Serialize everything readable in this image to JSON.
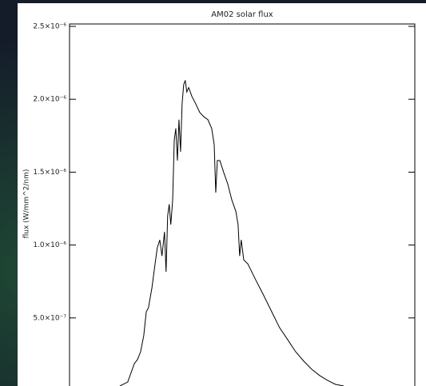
{
  "chart_data": {
    "type": "line",
    "title": "AM02 solar flux",
    "y_label": "flux (W/mm^2/nm)",
    "xlim": [
      102,
      1200
    ],
    "ylim": [
      3.3e-08,
      2.5e-06
    ],
    "yticks": [
      {
        "value": 2.5e-06,
        "label": "2.5×10⁻⁶"
      },
      {
        "value": 2e-06,
        "label": "2.0×10⁻⁶"
      },
      {
        "value": 1.5e-06,
        "label": "1.5×10⁻⁶"
      },
      {
        "value": 1e-06,
        "label": "1.0×10⁻⁶"
      },
      {
        "value": 5e-07,
        "label": "5.0×10⁻⁷"
      }
    ],
    "color": "#000000",
    "x": [
      262,
      287,
      308,
      318,
      328,
      338,
      346,
      353,
      364,
      374,
      381,
      389,
      396,
      404,
      409,
      414,
      419,
      424,
      430,
      435,
      440,
      445,
      450,
      455,
      460,
      465,
      470,
      475,
      481,
      491,
      503,
      516,
      529,
      542,
      554,
      562,
      567,
      572,
      580,
      592,
      605,
      618,
      631,
      638,
      643,
      648,
      656,
      669,
      694,
      720,
      745,
      770,
      796,
      821,
      847,
      872,
      898,
      923,
      948,
      974
    ],
    "values": [
      3.3e-08,
      6e-08,
      1.86e-07,
      2.14e-07,
      2.68e-07,
      3.78e-07,
      5.42e-07,
      5.7e-07,
      7.06e-07,
      8.71e-07,
      9.8e-07,
      1.035e-06,
      9.25e-07,
      1.09e-06,
      8.16e-07,
      1.2e-06,
      1.28e-06,
      1.14e-06,
      1.31e-06,
      1.72e-06,
      1.8e-06,
      1.58e-06,
      1.86e-06,
      1.64e-06,
      1.97e-06,
      2.1e-06,
      2.13e-06,
      2.05e-06,
      2.08e-06,
      2.02e-06,
      1.97e-06,
      1.91e-06,
      1.88e-06,
      1.86e-06,
      1.8e-06,
      1.69e-06,
      1.36e-06,
      1.58e-06,
      1.58e-06,
      1.5e-06,
      1.42e-06,
      1.31e-06,
      1.23e-06,
      1.14e-06,
      9.25e-07,
      1.035e-06,
      8.98e-07,
      8.71e-07,
      7.61e-07,
      6.52e-07,
      5.42e-07,
      4.33e-07,
      3.5e-07,
      2.68e-07,
      2.03e-07,
      1.48e-07,
      1.04e-07,
      7.1e-08,
      4.4e-08,
      3.3e-08
    ]
  }
}
